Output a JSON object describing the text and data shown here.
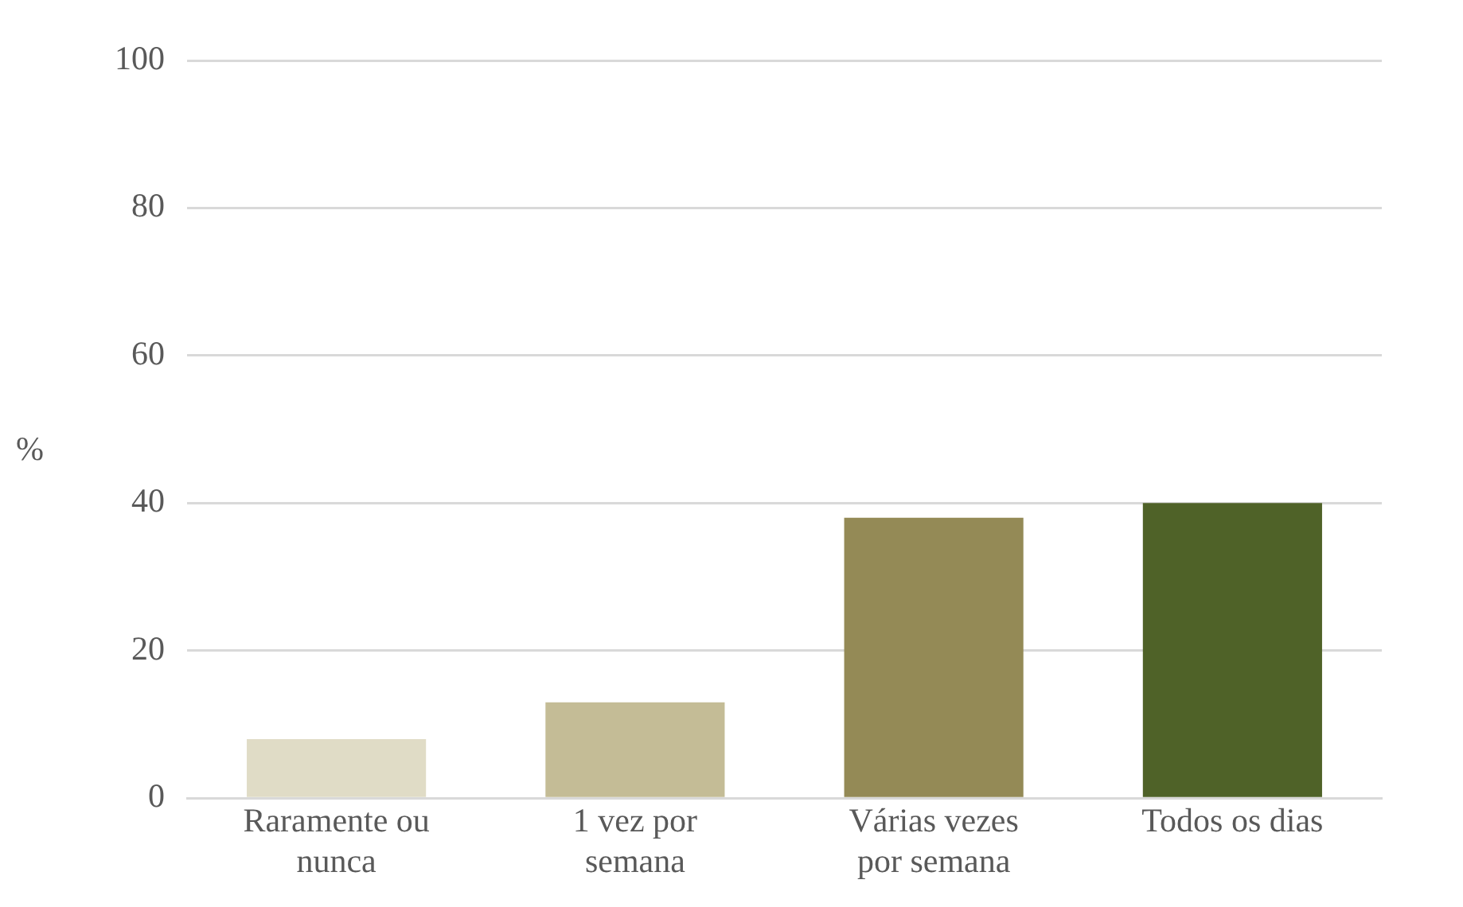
{
  "chart_data": {
    "type": "bar",
    "ylabel": "%",
    "categories": [
      "Raramente ou nunca",
      "1 vez por semana",
      "Várias vezes por semana",
      "Todos os dias"
    ],
    "values": [
      8,
      13,
      38,
      40
    ],
    "colors": [
      "#e0dcc6",
      "#c4bc96",
      "#948a56",
      "#4f6228"
    ],
    "ylim": [
      0,
      100
    ],
    "yticks": [
      0,
      20,
      40,
      60,
      80,
      100
    ],
    "grid": "y",
    "legend": false
  }
}
